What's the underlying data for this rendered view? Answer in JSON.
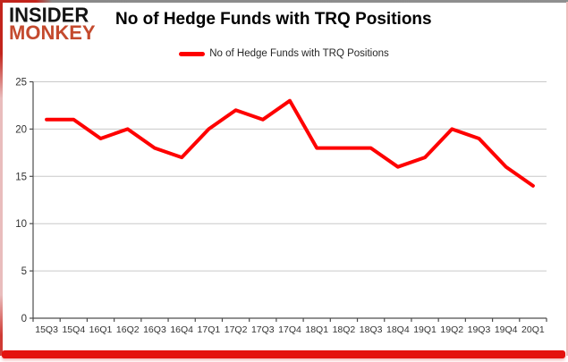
{
  "logo": {
    "line1": "INSIDER",
    "line2": "MONKEY"
  },
  "header": {
    "title": "No of Hedge Funds with TRQ Positions"
  },
  "legend": {
    "label": "No of Hedge Funds with TRQ Positions"
  },
  "chart_data": {
    "type": "line",
    "title": "No of Hedge Funds with TRQ Positions",
    "categories": [
      "15Q3",
      "15Q4",
      "16Q1",
      "16Q2",
      "16Q3",
      "16Q4",
      "17Q1",
      "17Q2",
      "17Q3",
      "17Q4",
      "18Q1",
      "18Q2",
      "18Q3",
      "18Q4",
      "19Q1",
      "19Q2",
      "19Q3",
      "19Q4",
      "20Q1"
    ],
    "series": [
      {
        "name": "No of Hedge Funds with TRQ Positions",
        "values": [
          21,
          21,
          19,
          20,
          18,
          17,
          20,
          22,
          21,
          23,
          18,
          18,
          18,
          16,
          17,
          20,
          19,
          16,
          14
        ]
      }
    ],
    "ylim": [
      0,
      25
    ],
    "ytick_step": 5,
    "grid": "horizontal",
    "legend_position": "top",
    "line_color": "#fe0000",
    "line_width": 4,
    "grid_color": "#c9c9c9",
    "axis_color": "#4d4d4d",
    "tick_label_color": "#333333"
  },
  "frame": {
    "red": "#c2241c",
    "bottom_bar": "#e4120e",
    "top_gray": "#8a8a8a",
    "right_pink": "#f0bcbc"
  }
}
